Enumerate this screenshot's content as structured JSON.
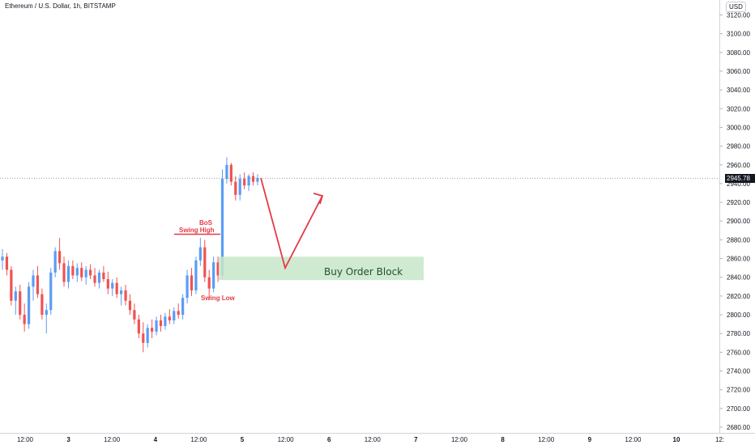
{
  "header": {
    "title": "Ethereum / U.S. Dollar, 1h, BITSTAMP",
    "currency": "USD"
  },
  "price_axis": {
    "ticks": [
      "3120.00",
      "3100.00",
      "3080.00",
      "3060.00",
      "3040.00",
      "3020.00",
      "3000.00",
      "2980.00",
      "2960.00",
      "2940.00",
      "2920.00",
      "2900.00",
      "2880.00",
      "2860.00",
      "2840.00",
      "2820.00",
      "2800.00",
      "2780.00",
      "2760.00",
      "2740.00",
      "2720.00",
      "2700.00",
      "2680.00"
    ],
    "current_price": "2945.78"
  },
  "time_axis": {
    "ticks": [
      "12:00",
      "3",
      "12:00",
      "4",
      "12:00",
      "5",
      "12:00",
      "6",
      "12:00",
      "7",
      "12:00",
      "8",
      "12:00",
      "9",
      "12:00",
      "10",
      "12:"
    ]
  },
  "annotations": {
    "bos": "BoS",
    "swing_high": "Swing High",
    "swing_low": "Swing Low",
    "order_block": "Buy Order Block"
  },
  "colors": {
    "bullish": "#5b9cf6",
    "bearish": "#ef5350",
    "annotation": "#e63946",
    "order_block_fill": "#c8e6c9",
    "price_line": "#7a7f89"
  },
  "chart_data": {
    "type": "candlestick",
    "symbol": "Ethereum / U.S. Dollar",
    "interval": "1h",
    "exchange": "BITSTAMP",
    "ylim": [
      2672,
      3130
    ],
    "current_price": 2945.78,
    "candles": [
      {
        "o": 2858,
        "h": 2870,
        "l": 2848,
        "c": 2862
      },
      {
        "o": 2862,
        "h": 2866,
        "l": 2842,
        "c": 2848
      },
      {
        "o": 2848,
        "h": 2852,
        "l": 2810,
        "c": 2815
      },
      {
        "o": 2815,
        "h": 2830,
        "l": 2800,
        "c": 2825
      },
      {
        "o": 2825,
        "h": 2832,
        "l": 2795,
        "c": 2800
      },
      {
        "o": 2800,
        "h": 2812,
        "l": 2782,
        "c": 2790
      },
      {
        "o": 2790,
        "h": 2835,
        "l": 2785,
        "c": 2830
      },
      {
        "o": 2830,
        "h": 2848,
        "l": 2815,
        "c": 2842
      },
      {
        "o": 2842,
        "h": 2852,
        "l": 2818,
        "c": 2822
      },
      {
        "o": 2822,
        "h": 2828,
        "l": 2795,
        "c": 2800
      },
      {
        "o": 2800,
        "h": 2812,
        "l": 2780,
        "c": 2805
      },
      {
        "o": 2805,
        "h": 2850,
        "l": 2800,
        "c": 2845
      },
      {
        "o": 2845,
        "h": 2872,
        "l": 2840,
        "c": 2868
      },
      {
        "o": 2868,
        "h": 2882,
        "l": 2848,
        "c": 2855
      },
      {
        "o": 2855,
        "h": 2862,
        "l": 2830,
        "c": 2835
      },
      {
        "o": 2835,
        "h": 2858,
        "l": 2828,
        "c": 2852
      },
      {
        "o": 2852,
        "h": 2858,
        "l": 2838,
        "c": 2842
      },
      {
        "o": 2842,
        "h": 2855,
        "l": 2835,
        "c": 2850
      },
      {
        "o": 2850,
        "h": 2856,
        "l": 2836,
        "c": 2840
      },
      {
        "o": 2840,
        "h": 2852,
        "l": 2832,
        "c": 2848
      },
      {
        "o": 2848,
        "h": 2854,
        "l": 2838,
        "c": 2842
      },
      {
        "o": 2842,
        "h": 2850,
        "l": 2830,
        "c": 2834
      },
      {
        "o": 2834,
        "h": 2848,
        "l": 2828,
        "c": 2845
      },
      {
        "o": 2845,
        "h": 2852,
        "l": 2835,
        "c": 2838
      },
      {
        "o": 2838,
        "h": 2846,
        "l": 2822,
        "c": 2828
      },
      {
        "o": 2828,
        "h": 2838,
        "l": 2820,
        "c": 2834
      },
      {
        "o": 2834,
        "h": 2840,
        "l": 2818,
        "c": 2822
      },
      {
        "o": 2822,
        "h": 2830,
        "l": 2810,
        "c": 2826
      },
      {
        "o": 2826,
        "h": 2832,
        "l": 2810,
        "c": 2815
      },
      {
        "o": 2815,
        "h": 2822,
        "l": 2800,
        "c": 2805
      },
      {
        "o": 2805,
        "h": 2812,
        "l": 2790,
        "c": 2795
      },
      {
        "o": 2795,
        "h": 2800,
        "l": 2775,
        "c": 2780
      },
      {
        "o": 2780,
        "h": 2792,
        "l": 2760,
        "c": 2770
      },
      {
        "o": 2770,
        "h": 2790,
        "l": 2765,
        "c": 2786
      },
      {
        "o": 2786,
        "h": 2795,
        "l": 2775,
        "c": 2782
      },
      {
        "o": 2782,
        "h": 2798,
        "l": 2778,
        "c": 2794
      },
      {
        "o": 2794,
        "h": 2800,
        "l": 2782,
        "c": 2788
      },
      {
        "o": 2788,
        "h": 2802,
        "l": 2784,
        "c": 2798
      },
      {
        "o": 2798,
        "h": 2806,
        "l": 2790,
        "c": 2794
      },
      {
        "o": 2794,
        "h": 2808,
        "l": 2790,
        "c": 2804
      },
      {
        "o": 2804,
        "h": 2812,
        "l": 2796,
        "c": 2800
      },
      {
        "o": 2800,
        "h": 2822,
        "l": 2795,
        "c": 2818
      },
      {
        "o": 2818,
        "h": 2848,
        "l": 2812,
        "c": 2842
      },
      {
        "o": 2842,
        "h": 2850,
        "l": 2820,
        "c": 2826
      },
      {
        "o": 2826,
        "h": 2862,
        "l": 2822,
        "c": 2858
      },
      {
        "o": 2858,
        "h": 2882,
        "l": 2852,
        "c": 2872
      },
      {
        "o": 2872,
        "h": 2880,
        "l": 2835,
        "c": 2840
      },
      {
        "o": 2840,
        "h": 2848,
        "l": 2818,
        "c": 2828
      },
      {
        "o": 2828,
        "h": 2862,
        "l": 2824,
        "c": 2856
      },
      {
        "o": 2856,
        "h": 2862,
        "l": 2835,
        "c": 2842
      },
      {
        "o": 2842,
        "h": 2955,
        "l": 2838,
        "c": 2945
      },
      {
        "o": 2945,
        "h": 2968,
        "l": 2940,
        "c": 2960
      },
      {
        "o": 2960,
        "h": 2962,
        "l": 2938,
        "c": 2942
      },
      {
        "o": 2942,
        "h": 2948,
        "l": 2922,
        "c": 2928
      },
      {
        "o": 2928,
        "h": 2950,
        "l": 2922,
        "c": 2945
      },
      {
        "o": 2945,
        "h": 2952,
        "l": 2934,
        "c": 2938
      },
      {
        "o": 2938,
        "h": 2950,
        "l": 2932,
        "c": 2948
      },
      {
        "o": 2948,
        "h": 2952,
        "l": 2938,
        "c": 2942
      },
      {
        "o": 2942,
        "h": 2950,
        "l": 2938,
        "c": 2946
      }
    ],
    "levels": {
      "bos_swing_high": 2886,
      "swing_low": 2835,
      "order_block": [
        2837,
        2862
      ]
    },
    "projection": [
      2946,
      2850,
      2927
    ]
  }
}
